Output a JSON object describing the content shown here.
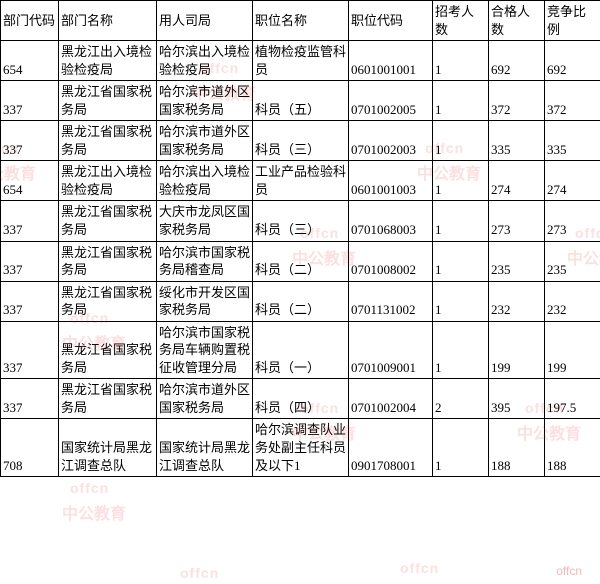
{
  "table": {
    "columns": [
      "部门代码",
      "部门名称",
      "用人司局",
      "职位名称",
      "职位代码",
      "招考人数",
      "合格人数",
      "竞争比例"
    ],
    "rows": [
      [
        "654",
        "黑龙江出入境检验检疫局",
        "哈尔滨出入境检验检疫局",
        "植物检疫监管科员",
        "0601001001",
        "1",
        "692",
        "692"
      ],
      [
        "337",
        "黑龙江省国家税务局",
        "哈尔滨市道外区国家税务局",
        "科员（五）",
        "0701002005",
        "1",
        "372",
        "372"
      ],
      [
        "337",
        "黑龙江省国家税务局",
        "哈尔滨市道外区国家税务局",
        "科员（三）",
        "0701002003",
        "1",
        "335",
        "335"
      ],
      [
        "654",
        "黑龙江出入境检验检疫局",
        "哈尔滨出入境检验检疫局",
        "工业产品检验科员",
        "0601001003",
        "1",
        "274",
        "274"
      ],
      [
        "337",
        "黑龙江省国家税务局",
        "大庆市龙凤区国家税务局",
        "科员（三）",
        "0701068003",
        "1",
        "273",
        "273"
      ],
      [
        "337",
        "黑龙江省国家税务局",
        "哈尔滨市国家税务局稽查局",
        "科员（二）",
        "0701008002",
        "1",
        "235",
        "235"
      ],
      [
        "337",
        "黑龙江省国家税务局",
        "绥化市开发区国家税务局",
        "科员（二）",
        "0701131002",
        "1",
        "232",
        "232"
      ],
      [
        "337",
        "黑龙江省国家税务局",
        "哈尔滨市国家税务局车辆购置税征收管理分局",
        "科员（一）",
        "0701009001",
        "1",
        "199",
        "199"
      ],
      [
        "337",
        "黑龙江省国家税务局",
        "哈尔滨市道外区国家税务局",
        "科员（四）",
        "0701002004",
        "2",
        "395",
        "197.5"
      ],
      [
        "708",
        "国家统计局黑龙江调查总队",
        "国家统计局黑龙江调查总队",
        "哈尔滨调查队业务处副主任科员及以下1",
        "0901708001",
        "1",
        "188",
        "188"
      ]
    ]
  },
  "watermark": {
    "brand_en": "offcn",
    "brand_cn": "中公教育"
  }
}
